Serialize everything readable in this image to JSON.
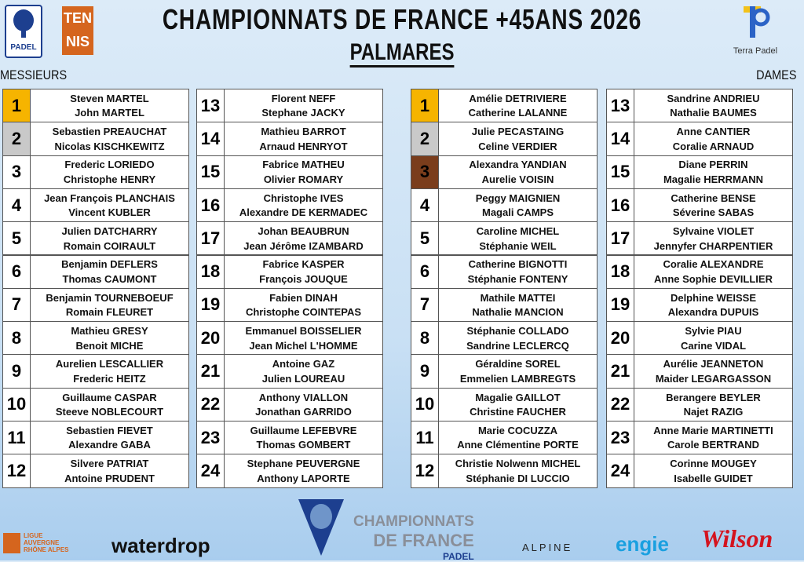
{
  "header": {
    "title": "CHAMPIONNATS DE FRANCE +45ANS 2026",
    "subtitle": "PALMARES"
  },
  "logos": {
    "padel": "PADEL",
    "tennis": [
      "TEN",
      "NIS"
    ],
    "terra": "Terra Padel"
  },
  "sections": [
    {
      "label": "MESSIEURS",
      "podium_colors": [
        "#f6b400",
        "#c9c9c9"
      ],
      "rows": [
        [
          1,
          "Steven MARTEL",
          "John MARTEL"
        ],
        [
          2,
          "Sebastien PREAUCHAT",
          "Nicolas KISCHKEWITZ"
        ],
        [
          3,
          "Frederic LORIEDO",
          "Christophe HENRY"
        ],
        [
          4,
          "Jean François PLANCHAIS",
          "Vincent KUBLER"
        ],
        [
          5,
          "Julien DATCHARRY",
          "Romain COIRAULT"
        ],
        [
          6,
          "Benjamin DEFLERS",
          "Thomas CAUMONT"
        ],
        [
          7,
          "Benjamin TOURNEBOEUF",
          "Romain FLEURET"
        ],
        [
          8,
          "Mathieu GRESY",
          "Benoit MICHE"
        ],
        [
          9,
          "Aurelien LESCALLIER",
          "Frederic HEITZ"
        ],
        [
          10,
          "Guillaume CASPAR",
          "Steeve NOBLECOURT"
        ],
        [
          11,
          "Sebastien FIEVET",
          "Alexandre GABA"
        ],
        [
          12,
          "Silvere PATRIAT",
          "Antoine PRUDENT"
        ],
        [
          13,
          "Florent NEFF",
          "Stephane JACKY"
        ],
        [
          14,
          "Mathieu BARROT",
          "Arnaud HENRYOT"
        ],
        [
          15,
          "Fabrice MATHEU",
          "Olivier ROMARY"
        ],
        [
          16,
          "Christophe IVES",
          "Alexandre DE KERMADEC"
        ],
        [
          17,
          "Johan BEAUBRUN",
          "Jean Jérôme IZAMBARD"
        ],
        [
          18,
          "Fabrice KASPER",
          "François JOUQUE"
        ],
        [
          19,
          "Fabien DINAH",
          "Christophe COINTEPAS"
        ],
        [
          20,
          "Emmanuel BOISSELIER",
          "Jean Michel L'HOMME"
        ],
        [
          21,
          "Antoine GAZ",
          "Julien LOUREAU"
        ],
        [
          22,
          "Anthony VIALLON",
          "Jonathan GARRIDO"
        ],
        [
          23,
          "Guillaume LEFEBVRE",
          "Thomas GOMBERT"
        ],
        [
          24,
          "Stephane PEUVERGNE",
          "Anthony LAPORTE"
        ]
      ]
    },
    {
      "label": "DAMES",
      "podium_colors": [
        "#f6b400",
        "#c9c9c9",
        "#7a3d1c"
      ],
      "rows": [
        [
          1,
          "Amélie DETRIVIERE",
          "Catherine LALANNE"
        ],
        [
          2,
          "Julie PECASTAING",
          "Celine VERDIER"
        ],
        [
          3,
          "Alexandra YANDIAN",
          "Aurelie VOISIN"
        ],
        [
          4,
          "Peggy MAIGNIEN",
          "Magali CAMPS"
        ],
        [
          5,
          "Caroline MICHEL",
          "Stéphanie WEIL"
        ],
        [
          6,
          "Catherine BIGNOTTI",
          "Stéphanie FONTENY"
        ],
        [
          7,
          "Mathile MATTEI",
          "Nathalie MANCION"
        ],
        [
          8,
          "Stéphanie COLLADO",
          "Sandrine LECLERCQ"
        ],
        [
          9,
          "Géraldine SOREL",
          "Emmelien LAMBREGTS"
        ],
        [
          10,
          "Magalie GAILLOT",
          "Christine FAUCHER"
        ],
        [
          11,
          "Marie COCUZZA",
          "Anne Clémentine PORTE"
        ],
        [
          12,
          "Christie Nolwenn MICHEL",
          "Stéphanie DI LUCCIO"
        ],
        [
          13,
          "Sandrine ANDRIEU",
          "Nathalie BAUMES"
        ],
        [
          14,
          "Anne CANTIER",
          "Coralie ARNAUD"
        ],
        [
          15,
          "Diane PERRIN",
          "Magalie HERRMANN"
        ],
        [
          16,
          "Catherine BENSE",
          "Séverine SABAS"
        ],
        [
          17,
          "Sylvaine VIOLET",
          "Jennyfer CHARPENTIER"
        ],
        [
          18,
          "Coralie ALEXANDRE",
          "Anne Sophie DEVILLIER"
        ],
        [
          19,
          "Delphine WEISSE",
          "Alexandra DUPUIS"
        ],
        [
          20,
          "Sylvie PIAU",
          "Carine VIDAL"
        ],
        [
          21,
          "Aurélie JEANNETON",
          "Maider LEGARGASSON"
        ],
        [
          22,
          "Berangere BEYLER",
          "Najet RAZIG"
        ],
        [
          23,
          "Anne Marie MARTINETTI",
          "Carole BERTRAND"
        ],
        [
          24,
          "Corinne MOUGEY",
          "Isabelle GUIDET"
        ]
      ]
    }
  ],
  "footer": {
    "ligue": [
      "LIGUE",
      "AUVERGNE",
      "RHÔNE ALPES"
    ],
    "championnats": [
      "CHAMPIONNATS",
      "DE FRANCE",
      "PADEL"
    ],
    "sponsors": [
      "waterdrop",
      "ALPINE",
      "engie",
      "Wilson"
    ]
  }
}
